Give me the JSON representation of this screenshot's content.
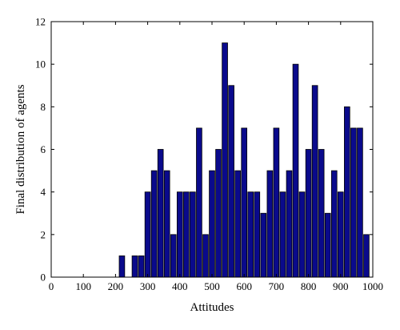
{
  "chart_data": {
    "type": "bar",
    "xlabel": "Attitudes",
    "ylabel": "Final distribution of agents",
    "xlim": [
      0,
      1000
    ],
    "ylim": [
      0,
      12
    ],
    "xticks": [
      0,
      100,
      200,
      300,
      400,
      500,
      600,
      700,
      800,
      900,
      1000
    ],
    "yticks": [
      0,
      2,
      4,
      6,
      8,
      10,
      12
    ],
    "bar_width": 17,
    "grid": false,
    "colors": {
      "bar_fill": "#0a0a8c",
      "bar_edge": "#000000"
    },
    "bars": [
      {
        "x": 220,
        "y": 1
      },
      {
        "x": 260,
        "y": 1
      },
      {
        "x": 280,
        "y": 1
      },
      {
        "x": 300,
        "y": 4
      },
      {
        "x": 320,
        "y": 5
      },
      {
        "x": 340,
        "y": 6
      },
      {
        "x": 360,
        "y": 5
      },
      {
        "x": 380,
        "y": 2
      },
      {
        "x": 400,
        "y": 4
      },
      {
        "x": 420,
        "y": 4
      },
      {
        "x": 440,
        "y": 4
      },
      {
        "x": 460,
        "y": 7
      },
      {
        "x": 480,
        "y": 2
      },
      {
        "x": 500,
        "y": 5
      },
      {
        "x": 520,
        "y": 6
      },
      {
        "x": 540,
        "y": 11
      },
      {
        "x": 560,
        "y": 9
      },
      {
        "x": 580,
        "y": 5
      },
      {
        "x": 600,
        "y": 7
      },
      {
        "x": 620,
        "y": 4
      },
      {
        "x": 640,
        "y": 4
      },
      {
        "x": 660,
        "y": 3
      },
      {
        "x": 680,
        "y": 5
      },
      {
        "x": 700,
        "y": 7
      },
      {
        "x": 720,
        "y": 4
      },
      {
        "x": 740,
        "y": 5
      },
      {
        "x": 760,
        "y": 10
      },
      {
        "x": 780,
        "y": 4
      },
      {
        "x": 800,
        "y": 6
      },
      {
        "x": 820,
        "y": 9
      },
      {
        "x": 840,
        "y": 6
      },
      {
        "x": 860,
        "y": 3
      },
      {
        "x": 880,
        "y": 5
      },
      {
        "x": 900,
        "y": 4
      },
      {
        "x": 920,
        "y": 8
      },
      {
        "x": 940,
        "y": 7
      },
      {
        "x": 960,
        "y": 7
      },
      {
        "x": 980,
        "y": 2
      }
    ]
  }
}
